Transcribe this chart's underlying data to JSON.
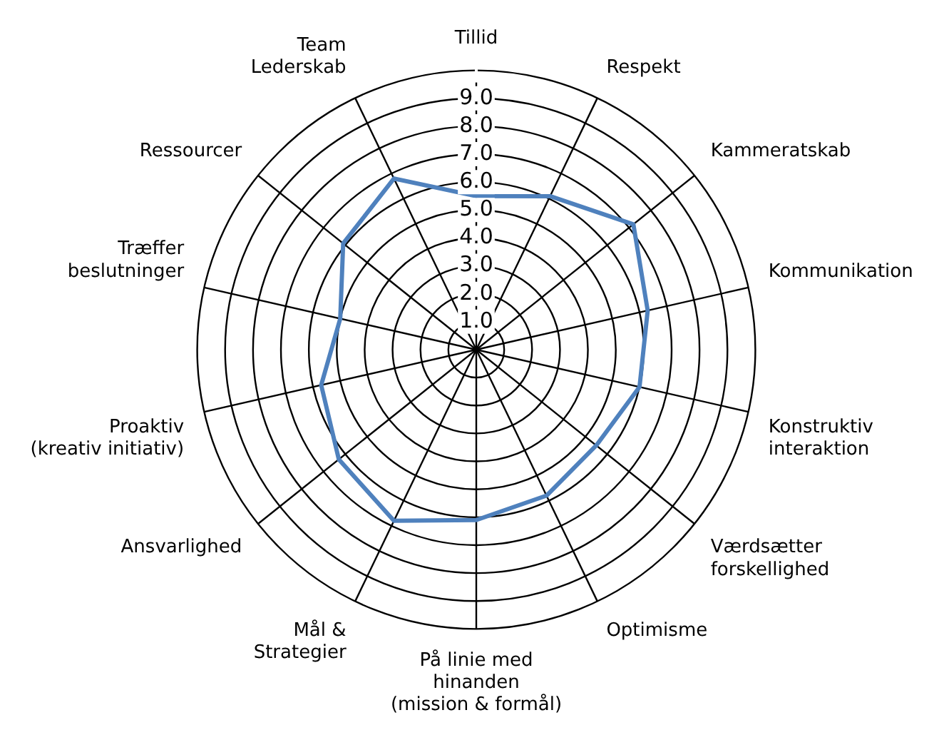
{
  "chart_data": {
    "type": "radar",
    "categories": [
      "Tillid",
      "Respekt",
      "Kammeratskab",
      "Kommunikation",
      "Konstruktiv\ninteraktion",
      "Værdsætter\nforskellighed",
      "Optimisme",
      "På linie med\nhinanden\n(mission & formål)",
      "Mål &\nStrategier",
      "Ansvarlighed",
      "Proaktiv\n(kreativ initiativ)",
      "Træffer\nbeslutninger",
      "Ressourcer",
      "Team\nLederskab"
    ],
    "series": [
      {
        "color": "#4f81bd",
        "values": [
          5.5,
          6.1,
          7.2,
          6.3,
          6.0,
          5.5,
          5.8,
          6.1,
          6.8,
          6.3,
          5.7,
          5.0,
          6.1,
          6.8
        ]
      }
    ],
    "ylim": [
      0,
      10
    ],
    "yticks": [
      {
        "value": 1,
        "label": "1.0"
      },
      {
        "value": 2,
        "label": "2.0"
      },
      {
        "value": 3,
        "label": "3.0"
      },
      {
        "value": 4,
        "label": "4.0"
      },
      {
        "value": 5,
        "label": "5.0"
      },
      {
        "value": 6,
        "label": "6.0"
      },
      {
        "value": 7,
        "label": "7.0"
      },
      {
        "value": 8,
        "label": "8.0"
      },
      {
        "value": 9,
        "label": "9.0"
      }
    ],
    "grid": true,
    "legend": false,
    "marker": "none"
  }
}
